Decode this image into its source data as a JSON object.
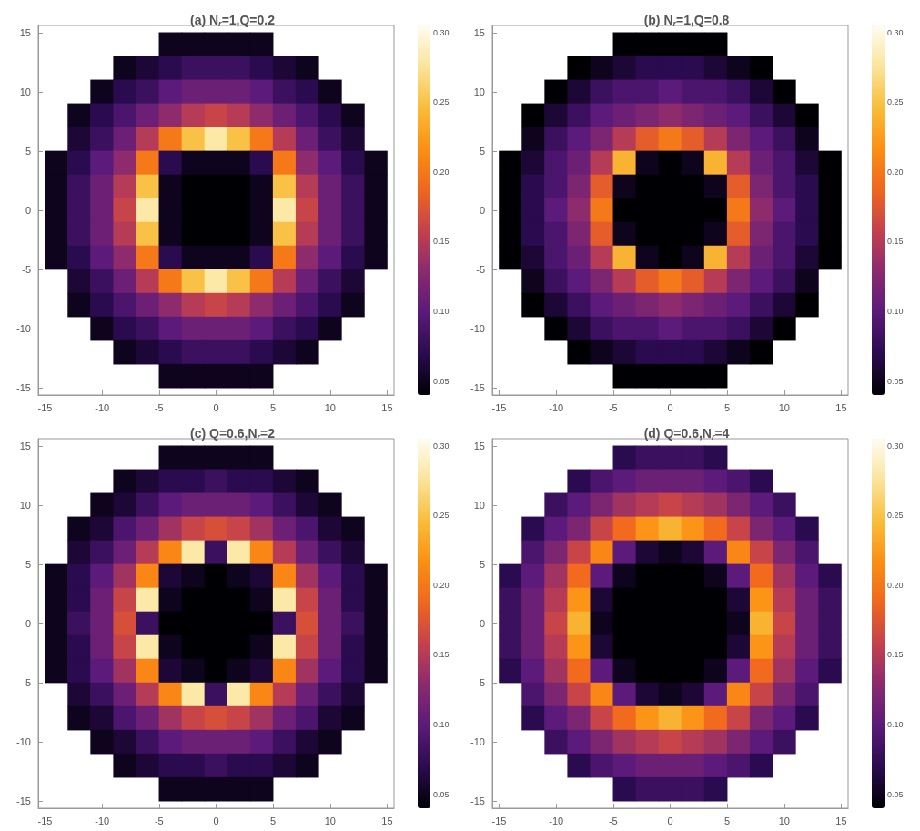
{
  "chart_data": [
    {
      "type": "scatter",
      "marker": "square",
      "title": "(a) N$_{r}$=1,Q=0.2",
      "xlim": [
        -15.6,
        15.6
      ],
      "ylim": [
        -15.6,
        15.6
      ],
      "xticks": [
        -15,
        -10,
        -5,
        0,
        5,
        10,
        15
      ],
      "yticks": [
        -15,
        -10,
        -5,
        0,
        5,
        10,
        15
      ],
      "clim": [
        0.04,
        0.305
      ],
      "cticks": [
        {
          "value": 0.05,
          "label": "0.05"
        },
        {
          "value": 0.1,
          "label": "0.10"
        },
        {
          "value": 0.15,
          "label": "0.15"
        },
        {
          "value": 0.2,
          "label": "0.20"
        },
        {
          "value": 0.25,
          "label": "0.25"
        },
        {
          "value": 0.3,
          "label": "0.30"
        }
      ],
      "x": [
        -4,
        -2,
        0,
        2,
        4,
        -8,
        -6,
        -4,
        -2,
        0,
        2,
        4,
        6,
        8,
        -10,
        -8,
        -6,
        -4,
        -2,
        0,
        2,
        4,
        6,
        8,
        10,
        -12,
        -10,
        -8,
        -6,
        -4,
        -2,
        0,
        2,
        4,
        6,
        8,
        10,
        12,
        -12,
        -10,
        -8,
        -6,
        -4,
        -2,
        0,
        2,
        4,
        6,
        8,
        10,
        12,
        -14,
        -12,
        -10,
        -8,
        -6,
        -4,
        -2,
        0,
        2,
        4,
        6,
        8,
        10,
        12,
        14,
        -14,
        -12,
        -10,
        -8,
        -6,
        -4,
        -2,
        0,
        2,
        4,
        6,
        8,
        10,
        12,
        14,
        -14,
        -12,
        -10,
        -8,
        -6,
        -4,
        -2,
        0,
        2,
        4,
        6,
        8,
        10,
        12,
        14,
        -14,
        -12,
        -10,
        -8,
        -6,
        -4,
        -2,
        0,
        2,
        4,
        6,
        8,
        10,
        12,
        14,
        -14,
        -12,
        -10,
        -8,
        -6,
        -4,
        -2,
        0,
        2,
        4,
        6,
        8,
        10,
        12,
        14,
        -12,
        -10,
        -8,
        -6,
        -4,
        -2,
        0,
        2,
        4,
        6,
        8,
        10,
        12,
        -12,
        -10,
        -8,
        -6,
        -4,
        -2,
        0,
        2,
        4,
        6,
        8,
        10,
        12,
        -10,
        -8,
        -6,
        -4,
        -2,
        0,
        2,
        4,
        6,
        8,
        10,
        -8,
        -6,
        -4,
        -2,
        0,
        2,
        4,
        6,
        8,
        -4,
        -2,
        0,
        2,
        4
      ],
      "values": [
        14,
        14,
        14,
        14,
        14,
        12,
        12,
        12,
        12,
        12,
        12,
        12,
        12,
        12,
        10,
        10,
        10,
        10,
        10,
        10,
        10,
        10,
        10,
        10,
        10,
        8,
        8,
        8,
        8,
        8,
        8,
        8,
        8,
        8,
        8,
        8,
        8,
        8,
        6,
        6,
        6,
        6,
        6,
        6,
        6,
        6,
        6,
        6,
        6,
        6,
        6,
        4,
        4,
        4,
        4,
        4,
        4,
        4,
        4,
        4,
        4,
        4,
        4,
        4,
        4,
        4,
        2,
        2,
        2,
        2,
        2,
        2,
        2,
        2,
        2,
        2,
        2,
        2,
        2,
        2,
        2,
        0,
        0,
        0,
        0,
        0,
        0,
        0,
        0,
        0,
        0,
        0,
        0,
        0,
        0,
        0,
        -2,
        -2,
        -2,
        -2,
        -2,
        -2,
        -2,
        -2,
        -2,
        -2,
        -2,
        -2,
        -2,
        -2,
        -2,
        -4,
        -4,
        -4,
        -4,
        -4,
        -4,
        -4,
        -4,
        -4,
        -4,
        -4,
        -4,
        -4,
        -4,
        -4,
        -6,
        -6,
        -6,
        -6,
        -6,
        -6,
        -6,
        -6,
        -6,
        -6,
        -6,
        -6,
        -6,
        -8,
        -8,
        -8,
        -8,
        -8,
        -8,
        -8,
        -8,
        -8,
        -8,
        -8,
        -8,
        -8,
        -10,
        -10,
        -10,
        -10,
        -10,
        -10,
        -10,
        -10,
        -10,
        -10,
        -10,
        -12,
        -12,
        -12,
        -12,
        -12,
        -12,
        -12,
        -12,
        -12,
        -14,
        -14,
        -14,
        -14,
        -14
      ],
      "cvalues": [
        0.05,
        0.05,
        0.05,
        0.05,
        0.05,
        0.05,
        0.06,
        0.07,
        0.08,
        0.08,
        0.08,
        0.07,
        0.06,
        0.05,
        0.05,
        0.07,
        0.08,
        0.1,
        0.11,
        0.11,
        0.11,
        0.1,
        0.08,
        0.07,
        0.05,
        0.05,
        0.07,
        0.09,
        0.11,
        0.13,
        0.15,
        0.16,
        0.15,
        0.13,
        0.11,
        0.09,
        0.07,
        0.05,
        0.06,
        0.08,
        0.11,
        0.15,
        0.2,
        0.25,
        0.28,
        0.25,
        0.2,
        0.15,
        0.11,
        0.08,
        0.06,
        0.05,
        0.07,
        0.1,
        0.13,
        0.2,
        0.07,
        0.05,
        0.05,
        0.05,
        0.07,
        0.2,
        0.13,
        0.1,
        0.07,
        0.05,
        0.05,
        0.08,
        0.11,
        0.15,
        0.25,
        0.05,
        0.04,
        0.04,
        0.04,
        0.05,
        0.25,
        0.15,
        0.11,
        0.08,
        0.05,
        0.05,
        0.08,
        0.11,
        0.16,
        0.28,
        0.05,
        0.04,
        0.04,
        0.04,
        0.05,
        0.28,
        0.16,
        0.11,
        0.08,
        0.05,
        0.05,
        0.08,
        0.11,
        0.15,
        0.25,
        0.05,
        0.04,
        0.04,
        0.04,
        0.05,
        0.25,
        0.15,
        0.11,
        0.08,
        0.05,
        0.05,
        0.07,
        0.1,
        0.13,
        0.2,
        0.07,
        0.05,
        0.05,
        0.05,
        0.07,
        0.2,
        0.13,
        0.1,
        0.07,
        0.05,
        0.06,
        0.08,
        0.11,
        0.15,
        0.2,
        0.25,
        0.28,
        0.25,
        0.2,
        0.15,
        0.11,
        0.08,
        0.06,
        0.05,
        0.07,
        0.09,
        0.11,
        0.13,
        0.15,
        0.16,
        0.15,
        0.13,
        0.11,
        0.09,
        0.07,
        0.05,
        0.05,
        0.07,
        0.08,
        0.1,
        0.11,
        0.11,
        0.11,
        0.1,
        0.08,
        0.07,
        0.05,
        0.05,
        0.06,
        0.07,
        0.08,
        0.08,
        0.08,
        0.07,
        0.06,
        0.05,
        0.05,
        0.05,
        0.05,
        0.05,
        0.05
      ]
    },
    {
      "type": "scatter",
      "marker": "square",
      "title": "(b) N$_{r}$=1,Q=0.8",
      "xlim": [
        -15.6,
        15.6
      ],
      "ylim": [
        -15.6,
        15.6
      ],
      "xticks": [
        -15,
        -10,
        -5,
        0,
        5,
        10,
        15
      ],
      "yticks": [
        -15,
        -10,
        -5,
        0,
        5,
        10,
        15
      ],
      "clim": [
        0.04,
        0.305
      ],
      "cticks": [
        {
          "value": 0.05,
          "label": "0.05"
        },
        {
          "value": 0.1,
          "label": "0.10"
        },
        {
          "value": 0.15,
          "label": "0.15"
        },
        {
          "value": 0.2,
          "label": "0.20"
        },
        {
          "value": 0.25,
          "label": "0.25"
        },
        {
          "value": 0.3,
          "label": "0.30"
        }
      ],
      "x": [
        -4,
        -2,
        0,
        2,
        4,
        -8,
        -6,
        -4,
        -2,
        0,
        2,
        4,
        6,
        8,
        -10,
        -8,
        -6,
        -4,
        -2,
        0,
        2,
        4,
        6,
        8,
        10,
        -12,
        -10,
        -8,
        -6,
        -4,
        -2,
        0,
        2,
        4,
        6,
        8,
        10,
        12,
        -12,
        -10,
        -8,
        -6,
        -4,
        -2,
        0,
        2,
        4,
        6,
        8,
        10,
        12,
        -14,
        -12,
        -10,
        -8,
        -6,
        -4,
        -2,
        0,
        2,
        4,
        6,
        8,
        10,
        12,
        14,
        -14,
        -12,
        -10,
        -8,
        -6,
        -4,
        -2,
        0,
        2,
        4,
        6,
        8,
        10,
        12,
        14,
        -14,
        -12,
        -10,
        -8,
        -6,
        -4,
        -2,
        0,
        2,
        4,
        6,
        8,
        10,
        12,
        14,
        -14,
        -12,
        -10,
        -8,
        -6,
        -4,
        -2,
        0,
        2,
        4,
        6,
        8,
        10,
        12,
        14,
        -14,
        -12,
        -10,
        -8,
        -6,
        -4,
        -2,
        0,
        2,
        4,
        6,
        8,
        10,
        12,
        14,
        -12,
        -10,
        -8,
        -6,
        -4,
        -2,
        0,
        2,
        4,
        6,
        8,
        10,
        12,
        -12,
        -10,
        -8,
        -6,
        -4,
        -2,
        0,
        2,
        4,
        6,
        8,
        10,
        12,
        -10,
        -8,
        -6,
        -4,
        -2,
        0,
        2,
        4,
        6,
        8,
        10,
        -8,
        -6,
        -4,
        -2,
        0,
        2,
        4,
        6,
        8,
        -4,
        -2,
        0,
        2,
        4
      ],
      "values": [
        14,
        14,
        14,
        14,
        14,
        12,
        12,
        12,
        12,
        12,
        12,
        12,
        12,
        12,
        10,
        10,
        10,
        10,
        10,
        10,
        10,
        10,
        10,
        10,
        10,
        8,
        8,
        8,
        8,
        8,
        8,
        8,
        8,
        8,
        8,
        8,
        8,
        8,
        6,
        6,
        6,
        6,
        6,
        6,
        6,
        6,
        6,
        6,
        6,
        6,
        6,
        4,
        4,
        4,
        4,
        4,
        4,
        4,
        4,
        4,
        4,
        4,
        4,
        4,
        4,
        4,
        2,
        2,
        2,
        2,
        2,
        2,
        2,
        2,
        2,
        2,
        2,
        2,
        2,
        2,
        2,
        0,
        0,
        0,
        0,
        0,
        0,
        0,
        0,
        0,
        0,
        0,
        0,
        0,
        0,
        0,
        -2,
        -2,
        -2,
        -2,
        -2,
        -2,
        -2,
        -2,
        -2,
        -2,
        -2,
        -2,
        -2,
        -2,
        -2,
        -4,
        -4,
        -4,
        -4,
        -4,
        -4,
        -4,
        -4,
        -4,
        -4,
        -4,
        -4,
        -4,
        -4,
        -4,
        -6,
        -6,
        -6,
        -6,
        -6,
        -6,
        -6,
        -6,
        -6,
        -6,
        -6,
        -6,
        -6,
        -8,
        -8,
        -8,
        -8,
        -8,
        -8,
        -8,
        -8,
        -8,
        -8,
        -8,
        -8,
        -8,
        -10,
        -10,
        -10,
        -10,
        -10,
        -10,
        -10,
        -10,
        -10,
        -10,
        -10,
        -12,
        -12,
        -12,
        -12,
        -12,
        -12,
        -12,
        -12,
        -12,
        -14,
        -14,
        -14,
        -14,
        -14
      ],
      "cvalues": [
        0.04,
        0.04,
        0.04,
        0.04,
        0.04,
        0.04,
        0.05,
        0.06,
        0.07,
        0.07,
        0.07,
        0.06,
        0.05,
        0.04,
        0.04,
        0.06,
        0.08,
        0.09,
        0.09,
        0.1,
        0.09,
        0.09,
        0.08,
        0.06,
        0.04,
        0.04,
        0.06,
        0.08,
        0.1,
        0.11,
        0.12,
        0.13,
        0.12,
        0.11,
        0.1,
        0.08,
        0.06,
        0.04,
        0.05,
        0.08,
        0.1,
        0.12,
        0.15,
        0.18,
        0.2,
        0.18,
        0.15,
        0.12,
        0.1,
        0.08,
        0.05,
        0.04,
        0.06,
        0.09,
        0.11,
        0.15,
        0.24,
        0.05,
        0.04,
        0.05,
        0.24,
        0.15,
        0.11,
        0.09,
        0.06,
        0.04,
        0.04,
        0.07,
        0.09,
        0.12,
        0.18,
        0.05,
        0.04,
        0.04,
        0.04,
        0.05,
        0.18,
        0.12,
        0.09,
        0.07,
        0.04,
        0.04,
        0.07,
        0.1,
        0.13,
        0.2,
        0.04,
        0.04,
        0.04,
        0.04,
        0.04,
        0.2,
        0.13,
        0.1,
        0.07,
        0.04,
        0.04,
        0.07,
        0.09,
        0.12,
        0.18,
        0.05,
        0.04,
        0.04,
        0.04,
        0.05,
        0.18,
        0.12,
        0.09,
        0.07,
        0.04,
        0.04,
        0.06,
        0.09,
        0.11,
        0.15,
        0.24,
        0.05,
        0.04,
        0.05,
        0.24,
        0.15,
        0.11,
        0.09,
        0.06,
        0.04,
        0.05,
        0.08,
        0.1,
        0.12,
        0.15,
        0.18,
        0.2,
        0.18,
        0.15,
        0.12,
        0.1,
        0.08,
        0.05,
        0.04,
        0.06,
        0.08,
        0.1,
        0.11,
        0.12,
        0.13,
        0.12,
        0.11,
        0.1,
        0.08,
        0.06,
        0.04,
        0.04,
        0.06,
        0.08,
        0.09,
        0.09,
        0.1,
        0.09,
        0.09,
        0.08,
        0.06,
        0.04,
        0.04,
        0.05,
        0.06,
        0.07,
        0.07,
        0.07,
        0.06,
        0.05,
        0.04,
        0.04,
        0.04,
        0.04,
        0.04,
        0.04
      ]
    },
    {
      "type": "scatter",
      "marker": "square",
      "title": "(c) Q=0.6,N$_{r}$=2",
      "xlim": [
        -15.6,
        15.6
      ],
      "ylim": [
        -15.6,
        15.6
      ],
      "xticks": [
        -15,
        -10,
        -5,
        0,
        5,
        10,
        15
      ],
      "yticks": [
        -15,
        -10,
        -5,
        0,
        5,
        10,
        15
      ],
      "clim": [
        0.04,
        0.305
      ],
      "cticks": [
        {
          "value": 0.05,
          "label": "0.05"
        },
        {
          "value": 0.1,
          "label": "0.10"
        },
        {
          "value": 0.15,
          "label": "0.15"
        },
        {
          "value": 0.2,
          "label": "0.20"
        },
        {
          "value": 0.25,
          "label": "0.25"
        },
        {
          "value": 0.3,
          "label": "0.30"
        }
      ],
      "x": [
        -4,
        -2,
        0,
        2,
        4,
        -8,
        -6,
        -4,
        -2,
        0,
        2,
        4,
        6,
        8,
        -10,
        -8,
        -6,
        -4,
        -2,
        0,
        2,
        4,
        6,
        8,
        10,
        -12,
        -10,
        -8,
        -6,
        -4,
        -2,
        0,
        2,
        4,
        6,
        8,
        10,
        12,
        -12,
        -10,
        -8,
        -6,
        -4,
        -2,
        0,
        2,
        4,
        6,
        8,
        10,
        12,
        -14,
        -12,
        -10,
        -8,
        -6,
        -4,
        -2,
        0,
        2,
        4,
        6,
        8,
        10,
        12,
        14,
        -14,
        -12,
        -10,
        -8,
        -6,
        -4,
        -2,
        0,
        2,
        4,
        6,
        8,
        10,
        12,
        14,
        -14,
        -12,
        -10,
        -8,
        -6,
        -4,
        -2,
        0,
        2,
        4,
        6,
        8,
        10,
        12,
        14,
        -14,
        -12,
        -10,
        -8,
        -6,
        -4,
        -2,
        0,
        2,
        4,
        6,
        8,
        10,
        12,
        14,
        -14,
        -12,
        -10,
        -8,
        -6,
        -4,
        -2,
        0,
        2,
        4,
        6,
        8,
        10,
        12,
        14,
        -12,
        -10,
        -8,
        -6,
        -4,
        -2,
        0,
        2,
        4,
        6,
        8,
        10,
        12,
        -12,
        -10,
        -8,
        -6,
        -4,
        -2,
        0,
        2,
        4,
        6,
        8,
        10,
        12,
        -10,
        -8,
        -6,
        -4,
        -2,
        0,
        2,
        4,
        6,
        8,
        10,
        -8,
        -6,
        -4,
        -2,
        0,
        2,
        4,
        6,
        8,
        -4,
        -2,
        0,
        2,
        4
      ],
      "values": [
        14,
        14,
        14,
        14,
        14,
        12,
        12,
        12,
        12,
        12,
        12,
        12,
        12,
        12,
        10,
        10,
        10,
        10,
        10,
        10,
        10,
        10,
        10,
        10,
        10,
        8,
        8,
        8,
        8,
        8,
        8,
        8,
        8,
        8,
        8,
        8,
        8,
        8,
        6,
        6,
        6,
        6,
        6,
        6,
        6,
        6,
        6,
        6,
        6,
        6,
        6,
        4,
        4,
        4,
        4,
        4,
        4,
        4,
        4,
        4,
        4,
        4,
        4,
        4,
        4,
        4,
        2,
        2,
        2,
        2,
        2,
        2,
        2,
        2,
        2,
        2,
        2,
        2,
        2,
        2,
        2,
        0,
        0,
        0,
        0,
        0,
        0,
        0,
        0,
        0,
        0,
        0,
        0,
        0,
        0,
        0,
        -2,
        -2,
        -2,
        -2,
        -2,
        -2,
        -2,
        -2,
        -2,
        -2,
        -2,
        -2,
        -2,
        -2,
        -2,
        -4,
        -4,
        -4,
        -4,
        -4,
        -4,
        -4,
        -4,
        -4,
        -4,
        -4,
        -4,
        -4,
        -4,
        -4,
        -6,
        -6,
        -6,
        -6,
        -6,
        -6,
        -6,
        -6,
        -6,
        -6,
        -6,
        -6,
        -6,
        -8,
        -8,
        -8,
        -8,
        -8,
        -8,
        -8,
        -8,
        -8,
        -8,
        -8,
        -8,
        -8,
        -10,
        -10,
        -10,
        -10,
        -10,
        -10,
        -10,
        -10,
        -10,
        -10,
        -10,
        -12,
        -12,
        -12,
        -12,
        -12,
        -12,
        -12,
        -12,
        -12,
        -14,
        -14,
        -14,
        -14,
        -14
      ],
      "cvalues": [
        0.05,
        0.05,
        0.05,
        0.05,
        0.05,
        0.05,
        0.06,
        0.07,
        0.07,
        0.08,
        0.07,
        0.07,
        0.06,
        0.05,
        0.05,
        0.06,
        0.08,
        0.1,
        0.11,
        0.11,
        0.11,
        0.1,
        0.08,
        0.06,
        0.05,
        0.05,
        0.06,
        0.09,
        0.11,
        0.14,
        0.16,
        0.17,
        0.16,
        0.14,
        0.11,
        0.09,
        0.06,
        0.05,
        0.06,
        0.08,
        0.11,
        0.15,
        0.21,
        0.28,
        0.08,
        0.28,
        0.21,
        0.15,
        0.11,
        0.08,
        0.06,
        0.05,
        0.07,
        0.1,
        0.14,
        0.21,
        0.06,
        0.05,
        0.04,
        0.05,
        0.06,
        0.21,
        0.14,
        0.1,
        0.07,
        0.05,
        0.05,
        0.07,
        0.11,
        0.16,
        0.28,
        0.05,
        0.04,
        0.04,
        0.04,
        0.05,
        0.28,
        0.16,
        0.11,
        0.07,
        0.05,
        0.05,
        0.08,
        0.11,
        0.17,
        0.08,
        0.04,
        0.04,
        0.04,
        0.04,
        0.04,
        0.08,
        0.17,
        0.11,
        0.08,
        0.05,
        0.05,
        0.07,
        0.11,
        0.16,
        0.28,
        0.05,
        0.04,
        0.04,
        0.04,
        0.05,
        0.28,
        0.16,
        0.11,
        0.07,
        0.05,
        0.05,
        0.07,
        0.1,
        0.14,
        0.21,
        0.06,
        0.05,
        0.04,
        0.05,
        0.06,
        0.21,
        0.14,
        0.1,
        0.07,
        0.05,
        0.06,
        0.08,
        0.11,
        0.15,
        0.21,
        0.28,
        0.08,
        0.28,
        0.21,
        0.15,
        0.11,
        0.08,
        0.06,
        0.05,
        0.06,
        0.09,
        0.11,
        0.14,
        0.16,
        0.17,
        0.16,
        0.14,
        0.11,
        0.09,
        0.06,
        0.05,
        0.05,
        0.06,
        0.08,
        0.1,
        0.11,
        0.11,
        0.11,
        0.1,
        0.08,
        0.06,
        0.05,
        0.05,
        0.06,
        0.07,
        0.07,
        0.08,
        0.07,
        0.07,
        0.06,
        0.05,
        0.05,
        0.05,
        0.05,
        0.05,
        0.05
      ]
    },
    {
      "type": "scatter",
      "marker": "square",
      "title": "(d) Q=0.6,N$_{r}$=4",
      "xlim": [
        -15.6,
        15.6
      ],
      "ylim": [
        -15.6,
        15.6
      ],
      "xticks": [
        -15,
        -10,
        -5,
        0,
        5,
        10,
        15
      ],
      "yticks": [
        -15,
        -10,
        -5,
        0,
        5,
        10,
        15
      ],
      "clim": [
        0.04,
        0.305
      ],
      "cticks": [
        {
          "value": 0.05,
          "label": "0.05"
        },
        {
          "value": 0.1,
          "label": "0.10"
        },
        {
          "value": 0.15,
          "label": "0.15"
        },
        {
          "value": 0.2,
          "label": "0.20"
        },
        {
          "value": 0.25,
          "label": "0.25"
        },
        {
          "value": 0.3,
          "label": "0.30"
        }
      ],
      "x": [
        -4,
        -2,
        0,
        2,
        4,
        -8,
        -6,
        -4,
        -2,
        0,
        2,
        4,
        6,
        8,
        -10,
        -8,
        -6,
        -4,
        -2,
        0,
        2,
        4,
        6,
        8,
        10,
        -12,
        -10,
        -8,
        -6,
        -4,
        -2,
        0,
        2,
        4,
        6,
        8,
        10,
        12,
        -12,
        -10,
        -8,
        -6,
        -4,
        -2,
        0,
        2,
        4,
        6,
        8,
        10,
        12,
        -14,
        -12,
        -10,
        -8,
        -6,
        -4,
        -2,
        0,
        2,
        4,
        6,
        8,
        10,
        12,
        14,
        -14,
        -12,
        -10,
        -8,
        -6,
        -4,
        -2,
        0,
        2,
        4,
        6,
        8,
        10,
        12,
        14,
        -14,
        -12,
        -10,
        -8,
        -6,
        -4,
        -2,
        0,
        2,
        4,
        6,
        8,
        10,
        12,
        14,
        -14,
        -12,
        -10,
        -8,
        -6,
        -4,
        -2,
        0,
        2,
        4,
        6,
        8,
        10,
        12,
        14,
        -14,
        -12,
        -10,
        -8,
        -6,
        -4,
        -2,
        0,
        2,
        4,
        6,
        8,
        10,
        12,
        14,
        -12,
        -10,
        -8,
        -6,
        -4,
        -2,
        0,
        2,
        4,
        6,
        8,
        10,
        12,
        -12,
        -10,
        -8,
        -6,
        -4,
        -2,
        0,
        2,
        4,
        6,
        8,
        10,
        12,
        -10,
        -8,
        -6,
        -4,
        -2,
        0,
        2,
        4,
        6,
        8,
        10,
        -8,
        -6,
        -4,
        -2,
        0,
        2,
        4,
        6,
        8,
        -4,
        -2,
        0,
        2,
        4
      ],
      "values": [
        14,
        14,
        14,
        14,
        14,
        12,
        12,
        12,
        12,
        12,
        12,
        12,
        12,
        12,
        10,
        10,
        10,
        10,
        10,
        10,
        10,
        10,
        10,
        10,
        10,
        8,
        8,
        8,
        8,
        8,
        8,
        8,
        8,
        8,
        8,
        8,
        8,
        8,
        6,
        6,
        6,
        6,
        6,
        6,
        6,
        6,
        6,
        6,
        6,
        6,
        6,
        4,
        4,
        4,
        4,
        4,
        4,
        4,
        4,
        4,
        4,
        4,
        4,
        4,
        4,
        4,
        2,
        2,
        2,
        2,
        2,
        2,
        2,
        2,
        2,
        2,
        2,
        2,
        2,
        2,
        2,
        0,
        0,
        0,
        0,
        0,
        0,
        0,
        0,
        0,
        0,
        0,
        0,
        0,
        0,
        0,
        -2,
        -2,
        -2,
        -2,
        -2,
        -2,
        -2,
        -2,
        -2,
        -2,
        -2,
        -2,
        -2,
        -2,
        -2,
        -4,
        -4,
        -4,
        -4,
        -4,
        -4,
        -4,
        -4,
        -4,
        -4,
        -4,
        -4,
        -4,
        -4,
        -4,
        -6,
        -6,
        -6,
        -6,
        -6,
        -6,
        -6,
        -6,
        -6,
        -6,
        -6,
        -6,
        -6,
        -8,
        -8,
        -8,
        -8,
        -8,
        -8,
        -8,
        -8,
        -8,
        -8,
        -8,
        -8,
        -8,
        -10,
        -10,
        -10,
        -10,
        -10,
        -10,
        -10,
        -10,
        -10,
        -10,
        -10,
        -12,
        -12,
        -12,
        -12,
        -12,
        -12,
        -12,
        -12,
        -12,
        -14,
        -14,
        -14,
        -14,
        -14
      ],
      "cvalues": [
        0.07,
        0.08,
        0.08,
        0.08,
        0.07,
        0.07,
        0.09,
        0.1,
        0.11,
        0.11,
        0.11,
        0.1,
        0.09,
        0.07,
        0.08,
        0.1,
        0.12,
        0.14,
        0.15,
        0.16,
        0.15,
        0.14,
        0.12,
        0.1,
        0.08,
        0.07,
        0.1,
        0.12,
        0.16,
        0.19,
        0.22,
        0.24,
        0.22,
        0.19,
        0.16,
        0.12,
        0.1,
        0.07,
        0.09,
        0.12,
        0.16,
        0.21,
        0.1,
        0.06,
        0.05,
        0.06,
        0.1,
        0.21,
        0.16,
        0.12,
        0.09,
        0.07,
        0.1,
        0.14,
        0.19,
        0.1,
        0.05,
        0.04,
        0.04,
        0.04,
        0.05,
        0.1,
        0.19,
        0.14,
        0.1,
        0.07,
        0.08,
        0.11,
        0.15,
        0.22,
        0.06,
        0.04,
        0.04,
        0.04,
        0.04,
        0.04,
        0.06,
        0.22,
        0.15,
        0.11,
        0.08,
        0.08,
        0.11,
        0.16,
        0.24,
        0.05,
        0.04,
        0.04,
        0.04,
        0.04,
        0.04,
        0.05,
        0.24,
        0.16,
        0.11,
        0.08,
        0.08,
        0.11,
        0.15,
        0.22,
        0.06,
        0.04,
        0.04,
        0.04,
        0.04,
        0.04,
        0.06,
        0.22,
        0.15,
        0.11,
        0.08,
        0.07,
        0.1,
        0.14,
        0.19,
        0.1,
        0.05,
        0.04,
        0.04,
        0.04,
        0.05,
        0.1,
        0.19,
        0.14,
        0.1,
        0.07,
        0.09,
        0.12,
        0.16,
        0.21,
        0.1,
        0.06,
        0.05,
        0.06,
        0.1,
        0.21,
        0.16,
        0.12,
        0.09,
        0.07,
        0.1,
        0.12,
        0.16,
        0.19,
        0.22,
        0.24,
        0.22,
        0.19,
        0.16,
        0.12,
        0.1,
        0.07,
        0.08,
        0.1,
        0.12,
        0.14,
        0.15,
        0.16,
        0.15,
        0.14,
        0.12,
        0.1,
        0.08,
        0.07,
        0.09,
        0.1,
        0.11,
        0.11,
        0.11,
        0.1,
        0.09,
        0.07,
        0.07,
        0.08,
        0.08,
        0.08,
        0.07
      ]
    }
  ]
}
